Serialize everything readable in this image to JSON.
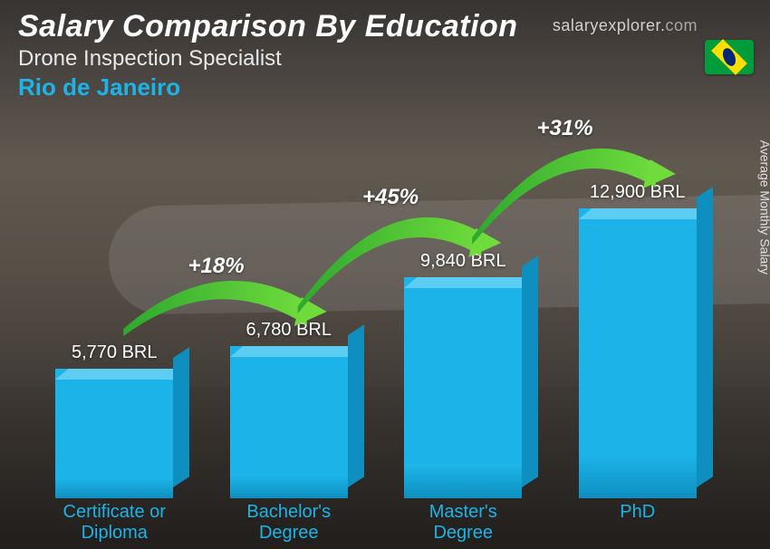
{
  "header": {
    "title": "Salary Comparison By Education",
    "subtitle": "Drone Inspection Specialist",
    "location": "Rio de Janeiro",
    "location_color": "#1cb4e8"
  },
  "brand": {
    "text_main": "salaryexplorer",
    "text_dot": ".",
    "text_tld": "com"
  },
  "ylabel": "Average Monthly Salary",
  "chart": {
    "type": "bar",
    "currency": "BRL",
    "max_value": 12900,
    "bar_color_front": "#1cb4e8",
    "bar_color_top": "#5ecdf2",
    "bar_color_side": "#0e8fbf",
    "label_color": "#1cb4e8",
    "bars": [
      {
        "label_line1": "Certificate or",
        "label_line2": "Diploma",
        "value": 5770,
        "value_text": "5,770 BRL"
      },
      {
        "label_line1": "Bachelor's",
        "label_line2": "Degree",
        "value": 6780,
        "value_text": "6,780 BRL"
      },
      {
        "label_line1": "Master's",
        "label_line2": "Degree",
        "value": 9840,
        "value_text": "9,840 BRL"
      },
      {
        "label_line1": "PhD",
        "label_line2": "",
        "value": 12900,
        "value_text": "12,900 BRL"
      }
    ],
    "increments": [
      {
        "text": "+18%",
        "from": 0,
        "to": 1
      },
      {
        "text": "+45%",
        "from": 1,
        "to": 2
      },
      {
        "text": "+31%",
        "from": 2,
        "to": 3
      }
    ],
    "arc_gradient_start": "#2ea82e",
    "arc_gradient_end": "#6fdc3c"
  },
  "flag": {
    "country": "Brazil"
  }
}
